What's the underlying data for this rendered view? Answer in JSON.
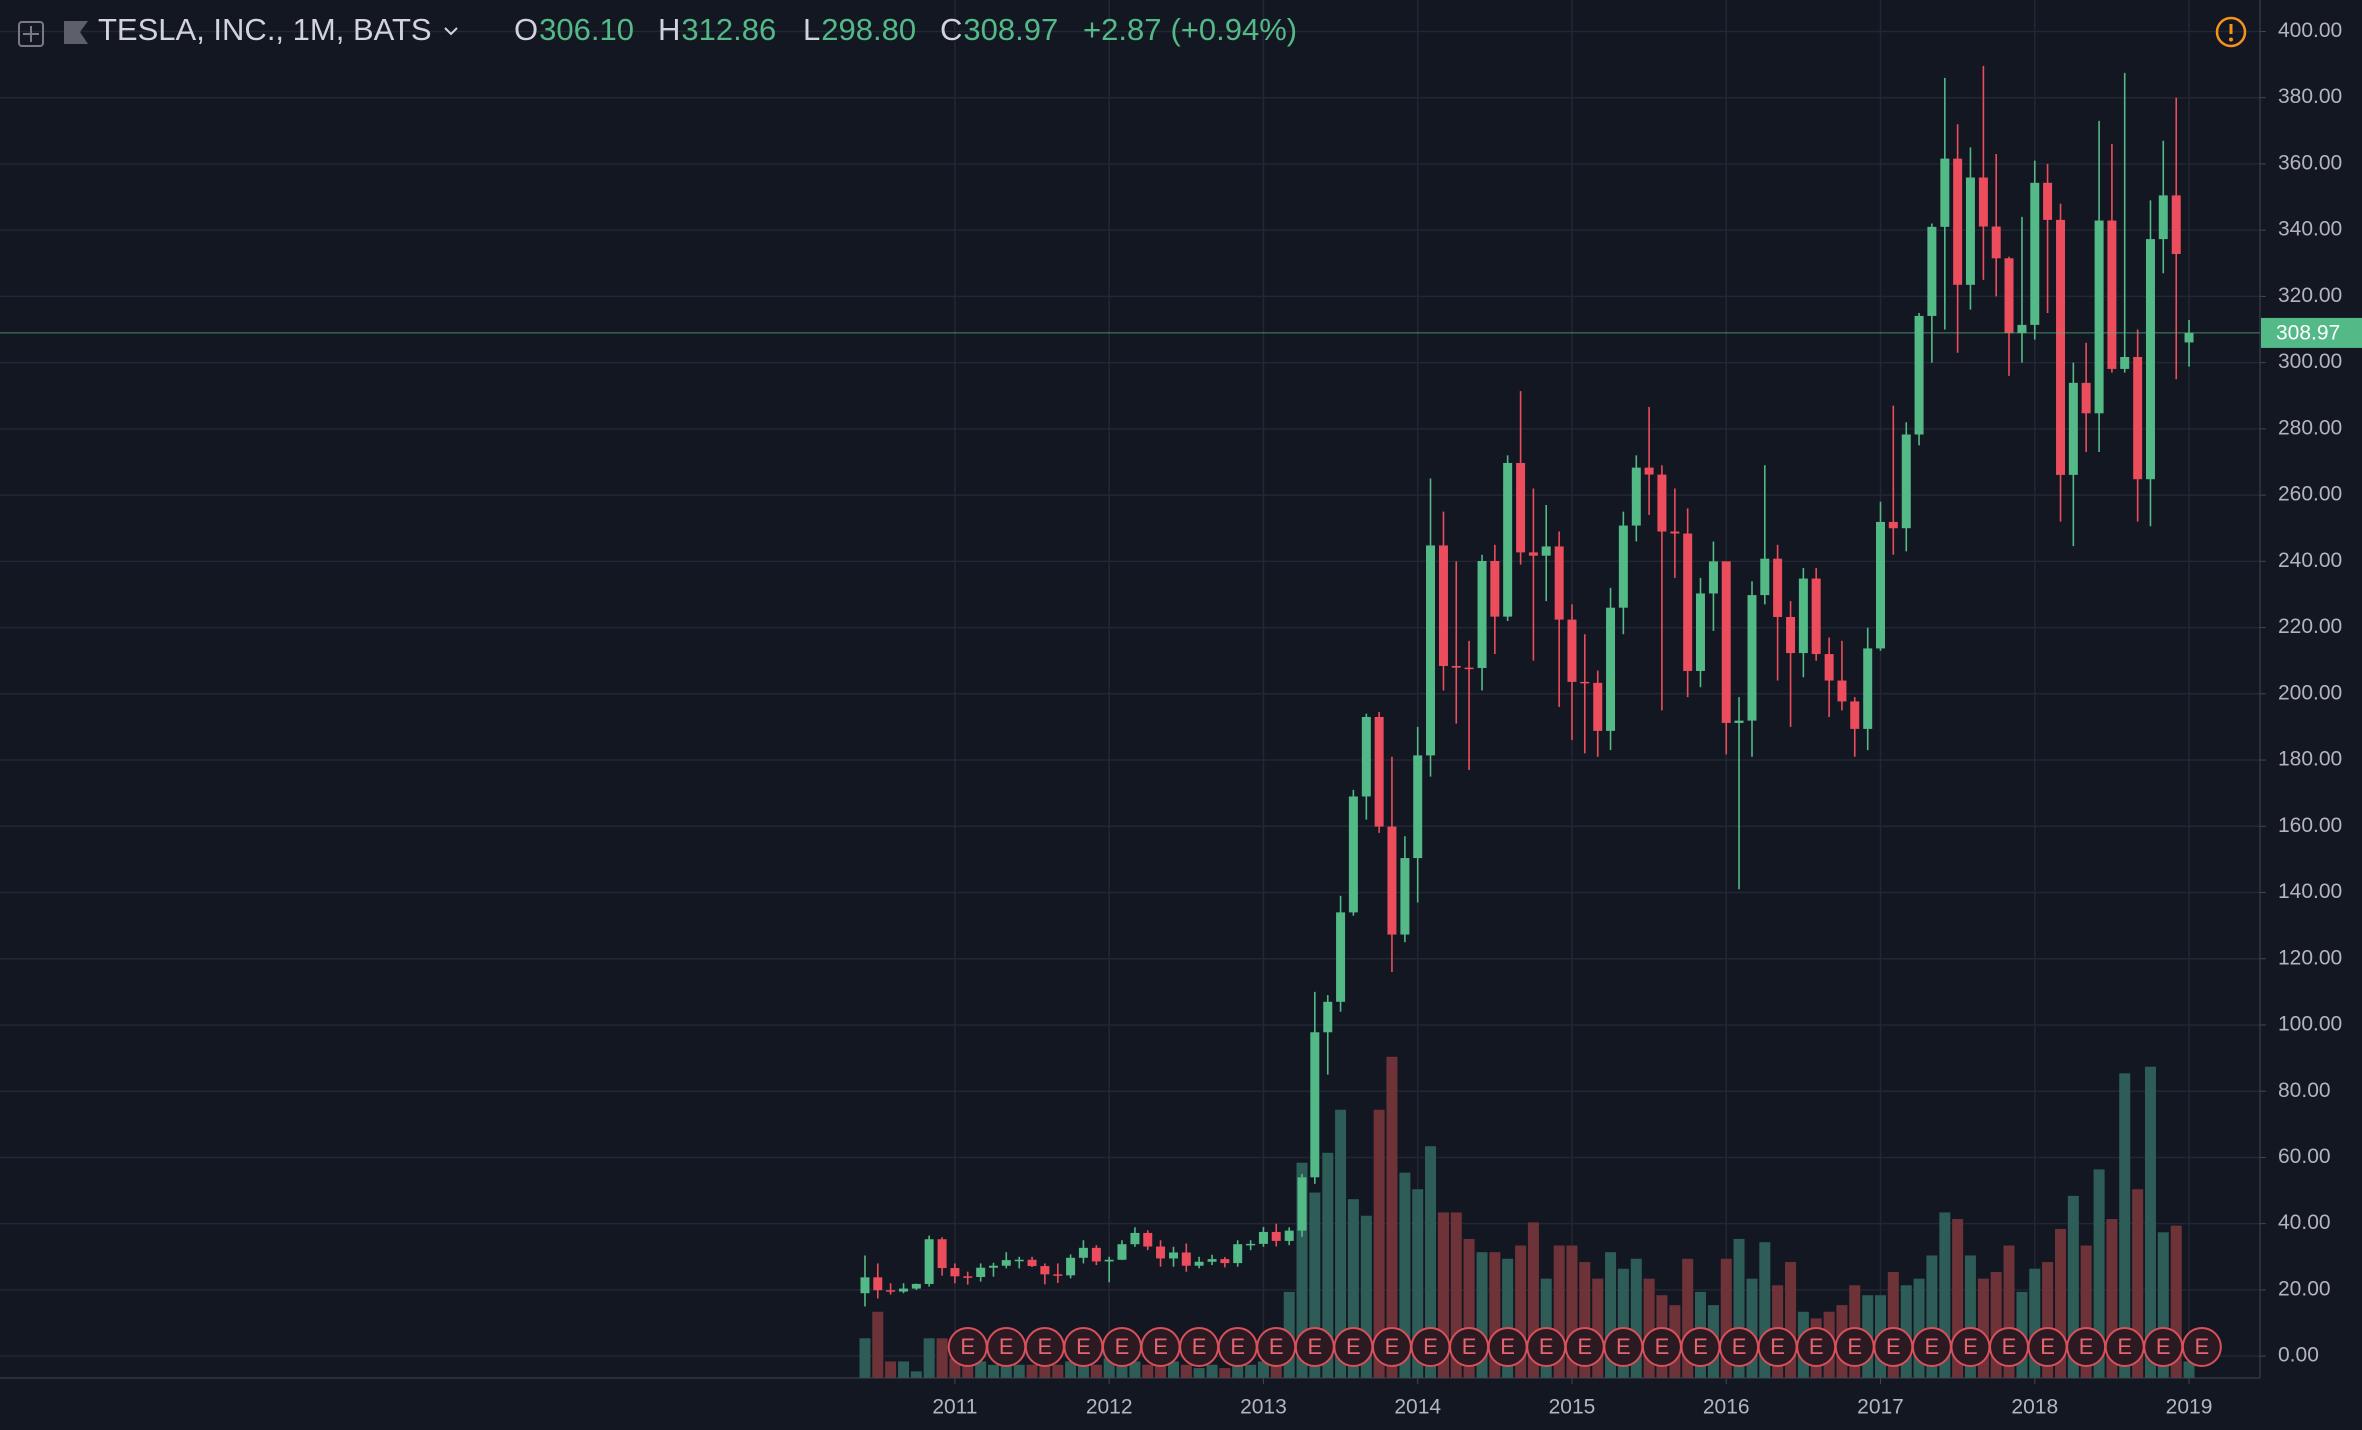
{
  "chart_data": {
    "type": "candlestick",
    "header": {
      "symbol": "TESLA, INC., 1M, BATS",
      "fields": [
        {
          "name": "O",
          "value": 306.1,
          "label": "306.10"
        },
        {
          "name": "H",
          "value": 312.86,
          "label": "312.86"
        },
        {
          "name": "L",
          "value": 298.8,
          "label": "298.80"
        },
        {
          "name": "C",
          "value": 308.97,
          "label": "308.97"
        }
      ],
      "change": {
        "value": 2.87,
        "label": "+2.87"
      },
      "change_pct": {
        "value": 0.94,
        "label": "(+0.94%)"
      }
    },
    "last_price": {
      "value": 308.97,
      "label": "308.97"
    },
    "up_color": "#53b987",
    "down_color": "#eb4d5c",
    "volume_up_color": "#2e5c57",
    "volume_down_color": "#6e3338",
    "grid": true,
    "xlim": [
      2004.81,
      2019.46
    ],
    "xticks": [
      2011,
      2012,
      2013,
      2014,
      2015,
      2016,
      2017,
      2018,
      2019
    ],
    "ylim": [
      -6.6,
      409.5
    ],
    "yticks": [
      {
        "value": 0,
        "label": "0.00"
      },
      {
        "value": 20,
        "label": "20.00"
      },
      {
        "value": 40,
        "label": "40.00"
      },
      {
        "value": 60,
        "label": "60.00"
      },
      {
        "value": 80,
        "label": "80.00"
      },
      {
        "value": 100,
        "label": "100.00"
      },
      {
        "value": 120,
        "label": "120.00"
      },
      {
        "value": 140,
        "label": "140.00"
      },
      {
        "value": 160,
        "label": "160.00"
      },
      {
        "value": 180,
        "label": "180.00"
      },
      {
        "value": 200,
        "label": "200.00"
      },
      {
        "value": 220,
        "label": "220.00"
      },
      {
        "value": 240,
        "label": "240.00"
      },
      {
        "value": 260,
        "label": "260.00"
      },
      {
        "value": 280,
        "label": "280.00"
      },
      {
        "value": 300,
        "label": "300.00"
      },
      {
        "value": 320,
        "label": "320.00"
      },
      {
        "value": 340,
        "label": "340.00"
      },
      {
        "value": 360,
        "label": "360.00"
      },
      {
        "value": 380,
        "label": "380.00"
      },
      {
        "value": 400,
        "label": "400.00"
      }
    ],
    "x": [
      2010.417,
      2010.5,
      2010.583,
      2010.667,
      2010.75,
      2010.833,
      2010.917,
      2011,
      2011.083,
      2011.167,
      2011.25,
      2011.333,
      2011.417,
      2011.5,
      2011.583,
      2011.667,
      2011.75,
      2011.833,
      2011.917,
      2012,
      2012.083,
      2012.167,
      2012.25,
      2012.333,
      2012.417,
      2012.5,
      2012.583,
      2012.667,
      2012.75,
      2012.833,
      2012.917,
      2013,
      2013.083,
      2013.167,
      2013.25,
      2013.333,
      2013.417,
      2013.5,
      2013.583,
      2013.667,
      2013.75,
      2013.833,
      2013.917,
      2014,
      2014.083,
      2014.167,
      2014.25,
      2014.333,
      2014.417,
      2014.5,
      2014.583,
      2014.667,
      2014.75,
      2014.833,
      2014.917,
      2015,
      2015.083,
      2015.167,
      2015.25,
      2015.333,
      2015.417,
      2015.5,
      2015.583,
      2015.667,
      2015.75,
      2015.833,
      2015.917,
      2016,
      2016.083,
      2016.167,
      2016.25,
      2016.333,
      2016.417,
      2016.5,
      2016.583,
      2016.667,
      2016.75,
      2016.833,
      2016.917,
      2017,
      2017.083,
      2017.167,
      2017.25,
      2017.333,
      2017.417,
      2017.5,
      2017.583,
      2017.667,
      2017.75,
      2017.833,
      2017.917,
      2018,
      2018.083,
      2018.167,
      2018.25,
      2018.333,
      2018.417,
      2018.5,
      2018.583,
      2018.667,
      2018.75,
      2018.833,
      2018.917,
      2019
    ],
    "open": [
      19,
      23.8,
      19.9,
      19.5,
      20.4,
      21.8,
      35.3,
      26.6,
      24.1,
      23.9,
      26.7,
      27.3,
      29.0,
      29.1,
      27.2,
      24.7,
      24.4,
      29.7,
      32.7,
      28.6,
      29.1,
      33.8,
      37.2,
      33.1,
      29.5,
      31.3,
      27.3,
      28.5,
      29.3,
      28.1,
      33.8,
      33.9,
      37.5,
      34.8,
      37.9,
      54.0,
      97.8,
      107.0,
      134.0,
      169.0,
      193.0,
      159.9,
      127.3,
      150.4,
      181.4,
      244.8,
      208.4,
      207.9,
      207.8,
      240.1,
      223.3,
      269.7,
      242.7,
      241.7,
      244.5,
      222.4,
      203.6,
      203.3,
      188.8,
      226.0,
      250.8,
      268.3,
      266.2,
      249.0,
      248.4,
      206.9,
      230.3,
      240.0,
      191.2,
      191.9,
      229.8,
      240.8,
      223.2,
      212.3,
      234.8,
      212.0,
      204.0,
      197.7,
      189.4,
      213.7,
      251.9,
      250.0,
      278.3,
      314.1,
      341.0,
      361.6,
      323.5,
      355.9,
      341.1,
      331.5,
      308.9,
      311.4,
      354.3,
      343.1,
      266.1,
      293.9,
      284.7,
      342.9,
      298.1,
      301.7,
      264.8,
      337.3,
      350.5,
      306.1
    ],
    "high": [
      30.4,
      28.0,
      22.0,
      22.0,
      21.9,
      36.4,
      35.9,
      28.0,
      25.5,
      28.0,
      28.2,
      31.4,
      30.0,
      30.0,
      28.0,
      28.0,
      30.7,
      35.0,
      33.5,
      30.0,
      35.0,
      38.9,
      38.0,
      35.0,
      33.0,
      34.0,
      30.0,
      30.6,
      29.9,
      35.0,
      35.0,
      39.0,
      40.0,
      38.9,
      55.0,
      110.0,
      109.0,
      139.0,
      171.0,
      194.0,
      194.5,
      181.0,
      157.0,
      190.0,
      265.0,
      255.0,
      240.0,
      216.0,
      242.0,
      245.0,
      272.0,
      291.4,
      262.0,
      257.0,
      249.0,
      227.0,
      218.0,
      207.0,
      232.0,
      255.0,
      272.0,
      286.6,
      269.0,
      262.0,
      256.0,
      235.0,
      246.0,
      240.0,
      199.0,
      234.0,
      269.0,
      245.0,
      228.0,
      238.0,
      238.0,
      217.0,
      216.0,
      199.0,
      220.0,
      258.0,
      287.0,
      282.0,
      315.0,
      342.0,
      386.0,
      372.0,
      365.0,
      389.6,
      363.0,
      332.0,
      344.0,
      361.0,
      360.0,
      348.0,
      300.0,
      306.0,
      373.0,
      366.0,
      387.5,
      310.0,
      349.0,
      367.0,
      380.0,
      312.86
    ],
    "low": [
      15.0,
      17.4,
      18.6,
      19.0,
      20.0,
      21.0,
      24.3,
      22.0,
      21.6,
      22.5,
      24.0,
      26.5,
      26.5,
      26.9,
      21.7,
      22.1,
      23.5,
      28.0,
      27.5,
      22.3,
      29.0,
      33.0,
      32.0,
      27.0,
      27.0,
      25.5,
      26.5,
      27.5,
      26.8,
      27.0,
      32.0,
      33.0,
      33.1,
      33.5,
      36.0,
      52.0,
      85.0,
      104.0,
      133.0,
      162.0,
      158.0,
      116.0,
      125.0,
      137.0,
      175.0,
      201.0,
      191.0,
      177.0,
      201.0,
      212.0,
      222.0,
      239.0,
      210.0,
      228.0,
      196.0,
      186.0,
      182.0,
      181.0,
      183.0,
      218.0,
      246.0,
      254.0,
      195.0,
      235.0,
      199.0,
      202.0,
      219.0,
      181.7,
      141.0,
      181.0,
      227.0,
      204.0,
      190.0,
      205.0,
      210.0,
      193.0,
      195.0,
      181.0,
      183.0,
      213.0,
      242.0,
      243.0,
      275.0,
      300.0,
      310.0,
      303.0,
      316.0,
      325.0,
      320.0,
      296.0,
      300.0,
      307.0,
      315.0,
      252.0,
      244.6,
      273.0,
      273.0,
      297.0,
      297.0,
      252.0,
      250.6,
      327.0,
      295.0,
      298.8
    ],
    "close": [
      23.8,
      19.9,
      19.5,
      20.4,
      21.8,
      35.3,
      26.6,
      24.1,
      23.9,
      26.7,
      27.3,
      29.0,
      29.1,
      27.2,
      24.7,
      24.4,
      29.7,
      32.7,
      28.6,
      29.1,
      33.8,
      37.2,
      33.1,
      29.5,
      31.3,
      27.3,
      28.5,
      29.3,
      28.1,
      33.8,
      33.9,
      37.5,
      34.8,
      37.9,
      54.0,
      97.8,
      107.0,
      134.0,
      169.0,
      193.0,
      159.9,
      127.3,
      150.4,
      181.4,
      244.8,
      208.4,
      207.9,
      207.8,
      240.1,
      223.3,
      269.7,
      242.7,
      241.7,
      244.5,
      222.4,
      203.6,
      203.3,
      188.8,
      226.0,
      250.8,
      268.3,
      266.2,
      249.0,
      248.4,
      206.9,
      230.3,
      240.0,
      191.2,
      191.9,
      229.8,
      240.8,
      223.2,
      212.3,
      234.8,
      212.0,
      204.0,
      197.7,
      189.4,
      213.7,
      251.9,
      250.0,
      278.3,
      314.1,
      341.0,
      361.6,
      323.5,
      355.9,
      341.1,
      331.5,
      308.9,
      311.4,
      354.3,
      343.1,
      266.1,
      293.9,
      284.7,
      342.9,
      298.1,
      301.7,
      264.8,
      337.3,
      350.5,
      332.8,
      308.97
    ],
    "volume": [
      12,
      20,
      5,
      5,
      2,
      12,
      12,
      6,
      5,
      5,
      4,
      5,
      4,
      4,
      5,
      4,
      5,
      5,
      4,
      6,
      5,
      5,
      4,
      5,
      5,
      4,
      3,
      4,
      3,
      5,
      4,
      5,
      5,
      26,
      65,
      56,
      68,
      81,
      54,
      49,
      81,
      97,
      62,
      57,
      70,
      50,
      50,
      42,
      38,
      38,
      36,
      40,
      47,
      30,
      40,
      40,
      35,
      30,
      38,
      33,
      36,
      30,
      25,
      22,
      36,
      26,
      22,
      36,
      42,
      30,
      41,
      28,
      35,
      20,
      18,
      20,
      22,
      28,
      25,
      25,
      32,
      28,
      30,
      37,
      50,
      48,
      37,
      30,
      32,
      40,
      26,
      33,
      35,
      45,
      55,
      40,
      63,
      48,
      92,
      57,
      94,
      44,
      46,
      5
    ],
    "earnings_label": "E",
    "earnings": [
      2011.083,
      2011.333,
      2011.583,
      2011.833,
      2012.083,
      2012.333,
      2012.583,
      2012.833,
      2013.083,
      2013.333,
      2013.583,
      2013.833,
      2014.083,
      2014.333,
      2014.583,
      2014.833,
      2015.083,
      2015.333,
      2015.583,
      2015.833,
      2016.083,
      2016.333,
      2016.583,
      2016.833,
      2017.083,
      2017.333,
      2017.583,
      2017.833,
      2018.083,
      2018.333,
      2018.583,
      2018.833,
      2019.083
    ]
  }
}
